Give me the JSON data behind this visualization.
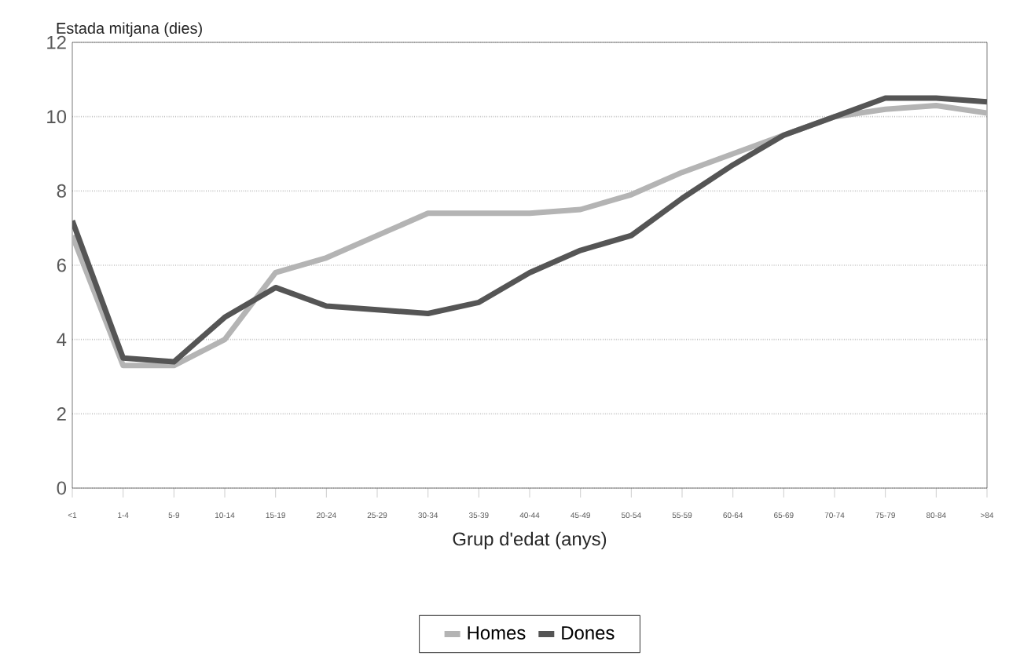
{
  "chart_data": {
    "type": "line",
    "ylabel": "Estada mitjana (dies)",
    "xlabel": "Grup d'edat (anys)",
    "categories": [
      "<1",
      "1-4",
      "5-9",
      "10-14",
      "15-19",
      "20-24",
      "25-29",
      "30-34",
      "35-39",
      "40-44",
      "45-49",
      "50-54",
      "55-59",
      "60-64",
      "65-69",
      "70-74",
      "75-79",
      "80-84",
      ">84"
    ],
    "series": [
      {
        "name": "Homes",
        "color": "#b4b4b4",
        "values": [
          6.8,
          3.3,
          3.3,
          4.0,
          5.8,
          6.2,
          6.8,
          7.4,
          7.4,
          7.4,
          7.5,
          7.9,
          8.5,
          9.0,
          9.5,
          10.0,
          10.2,
          10.3,
          10.1
        ]
      },
      {
        "name": "Dones",
        "color": "#555555",
        "values": [
          7.2,
          3.5,
          3.4,
          4.6,
          5.4,
          4.9,
          4.8,
          4.7,
          5.0,
          5.8,
          6.4,
          6.8,
          7.8,
          8.7,
          9.5,
          10.0,
          10.5,
          10.5,
          10.4
        ]
      }
    ],
    "ylim": [
      0,
      12
    ],
    "yticks": [
      0,
      2,
      4,
      6,
      8,
      10,
      12
    ],
    "grid": "y",
    "legend": "bottom",
    "marker": "none",
    "line_style": "solid"
  }
}
